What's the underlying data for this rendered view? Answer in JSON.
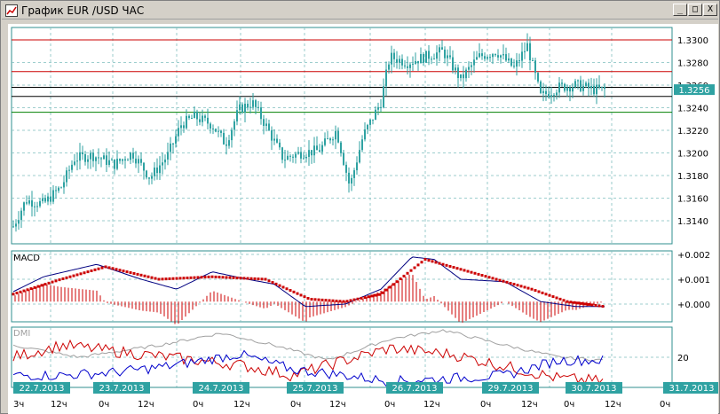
{
  "window": {
    "title": "График EUR /USD ЧАС",
    "minimize_symbol": "_",
    "maximize_symbol": "□",
    "close_symbol": "X"
  },
  "price_axis": {
    "ticks": [
      "1.3300",
      "1.3280",
      "1.3260",
      "1.3240",
      "1.3220",
      "1.3200",
      "1.3180",
      "1.3160",
      "1.3140"
    ],
    "current_price_label": "1.3256",
    "current_price_color": "#2fa2a2"
  },
  "macd": {
    "label": "MACD",
    "ticks": [
      "+0.002",
      "+0.001",
      "+0.000"
    ],
    "macd_color": "#000080",
    "signal_color": "#cc0000"
  },
  "dmi": {
    "label": "DMI",
    "ticks": [
      "20"
    ],
    "plus_di_color": "#0000cc",
    "minus_di_color": "#cc0000",
    "adx_color": "#a0a0a0"
  },
  "horizontal_levels": [
    {
      "price": 1.33,
      "color": "#cc0000"
    },
    {
      "price": 1.3272,
      "color": "#cc0000"
    },
    {
      "price": 1.3258,
      "color": "#000000"
    },
    {
      "price": 1.325,
      "color": "#000000"
    },
    {
      "price": 1.3236,
      "color": "#008000"
    }
  ],
  "time_axis": {
    "dates": [
      "22.7.2013",
      "23.7.2013",
      "24.7.2013",
      "25.7.2013",
      "26.7.2013",
      "29.7.2013",
      "30.7.2013",
      "31.7.2013"
    ],
    "hours": [
      "3ч",
      "12ч",
      "0ч",
      "12ч",
      "0ч",
      "12ч",
      "0ч",
      "12ч",
      "0ч",
      "12ч",
      "0ч",
      "12ч",
      "0ч",
      "12ч",
      "0ч"
    ],
    "date_label_color": "#2fa2a2"
  },
  "colors": {
    "candle": "#2fa2a2",
    "grid": "#7fbfbf",
    "panel_border": "#2f8f8f"
  }
}
